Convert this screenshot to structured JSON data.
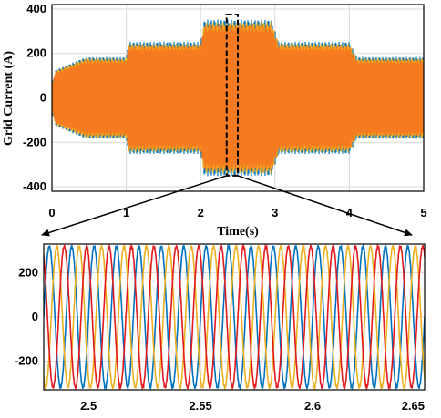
{
  "chart_data": [
    {
      "type": "line",
      "xlabel": "Time(s)",
      "ylabel": "Grid Current (A)",
      "xlim": [
        0,
        5
      ],
      "ylim": [
        -420,
        420
      ],
      "x_ticks": [
        0,
        1,
        2,
        3,
        4,
        5
      ],
      "y_ticks": [
        -400,
        -200,
        0,
        200,
        400
      ],
      "grid": true,
      "envelope": {
        "x": [
          0,
          0.05,
          0.45,
          1.0,
          1.03,
          2.0,
          2.05,
          2.95,
          3.05,
          4.0,
          4.1,
          5.0
        ],
        "amplitude": [
          60,
          120,
          175,
          175,
          240,
          240,
          335,
          335,
          240,
          240,
          175,
          175
        ]
      },
      "series": [
        {
          "color": "#0072BD"
        },
        {
          "color": "#EDB120"
        },
        {
          "color": "#F57A20"
        }
      ],
      "zoom_box": {
        "x": [
          2.35,
          2.5
        ],
        "y": [
          -350,
          375
        ]
      }
    },
    {
      "type": "line",
      "xlim": [
        2.48,
        2.65
      ],
      "ylim": [
        -330,
        330
      ],
      "x_ticks": [
        2.5,
        2.55,
        2.6,
        2.65
      ],
      "x_tick_labels": [
        "2.5",
        "2.55",
        "2.6",
        "2.65"
      ],
      "y_ticks": [
        -200,
        0,
        200
      ],
      "grid": true,
      "amplitude": 320,
      "frequency_hz": 100,
      "series": [
        {
          "color": "#0072BD",
          "phase_deg": 0
        },
        {
          "color": "#EDB120",
          "phase_deg": 120
        },
        {
          "color": "#E2191F",
          "phase_deg": 240
        }
      ]
    }
  ]
}
